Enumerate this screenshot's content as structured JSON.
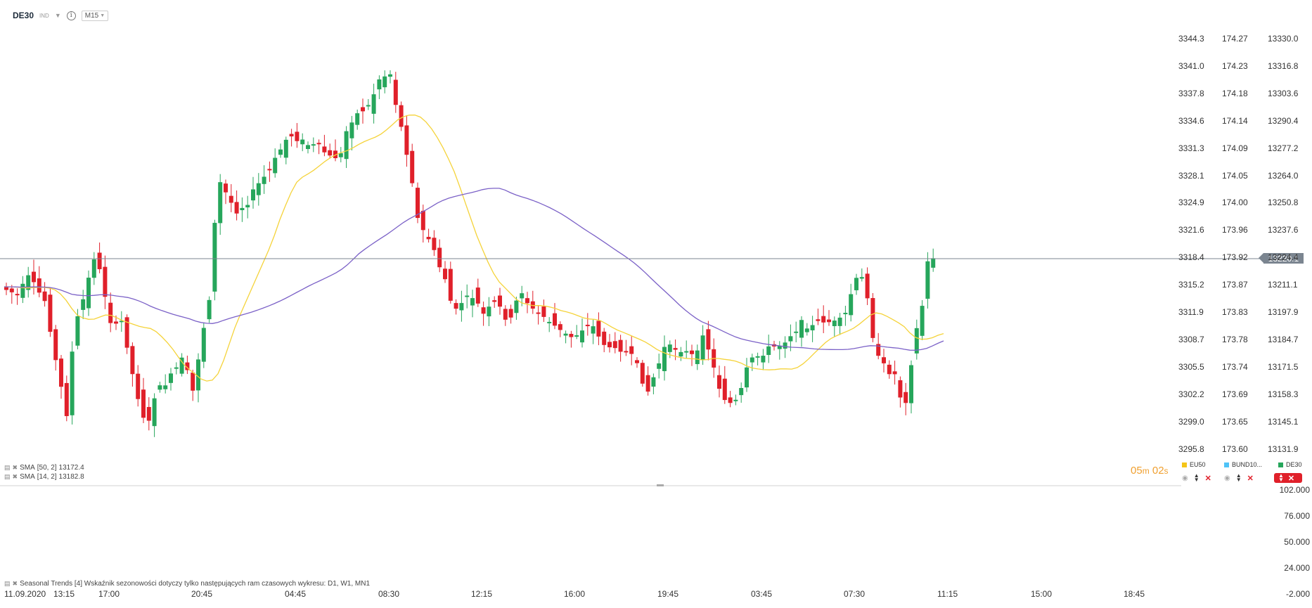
{
  "header": {
    "symbol": "DE30",
    "badge": "IND",
    "timeframe": "M15"
  },
  "scale_primary": {
    "values": [
      "13330.0",
      "13316.8",
      "13303.6",
      "13290.4",
      "13277.2",
      "13264.0",
      "13250.8",
      "13237.6",
      "13224.4",
      "13211.1",
      "13197.9",
      "13184.7",
      "13171.5",
      "13158.3",
      "13145.1",
      "13131.9"
    ]
  },
  "scale_eu50": {
    "values": [
      "3344.3",
      "3341.0",
      "3337.8",
      "3334.6",
      "3331.3",
      "3328.1",
      "3324.9",
      "3321.6",
      "3318.4",
      "3315.2",
      "3311.9",
      "3308.7",
      "3305.5",
      "3302.2",
      "3299.0",
      "3295.8"
    ]
  },
  "scale_bund": {
    "values": [
      "174.27",
      "174.23",
      "174.18",
      "174.14",
      "174.09",
      "174.05",
      "174.00",
      "173.96",
      "173.92",
      "173.87",
      "173.83",
      "173.78",
      "173.74",
      "173.69",
      "173.65",
      "173.60"
    ]
  },
  "current_price": "13220.1",
  "indicator_scale": [
    "102.000",
    "76.000",
    "50.000",
    "24.000",
    "-2.000"
  ],
  "time_axis": [
    "11.09.2020",
    "13:15",
    "17:00",
    "20:45",
    "04:45",
    "08:30",
    "12:15",
    "16:00",
    "19:45",
    "03:45",
    "07:30",
    "11:15",
    "15:00",
    "18:45"
  ],
  "legend": [
    {
      "label": "SMA",
      "params": "[50, 2]",
      "value": "13172.4"
    },
    {
      "label": "SMA",
      "params": "[14, 2]",
      "value": "13182.8"
    }
  ],
  "seasonal": "Seasonal Trends [4] Wskaźnik sezonowości dotyczy tylko następujących ram czasowych wykresu: D1, W1, MN1",
  "timer": {
    "m": "05",
    "m_unit": "m",
    "s": "02",
    "s_unit": "s"
  },
  "instruments": [
    {
      "name": "EU50",
      "color": "#f5c518"
    },
    {
      "name": "BUND10...",
      "color": "#4fc3f7"
    },
    {
      "name": "DE30",
      "color": "#26a65b"
    }
  ],
  "colors": {
    "up": "#26a65b",
    "down": "#e0202a",
    "sma50": "#7b61c7",
    "sma14": "#f5d33a"
  }
}
